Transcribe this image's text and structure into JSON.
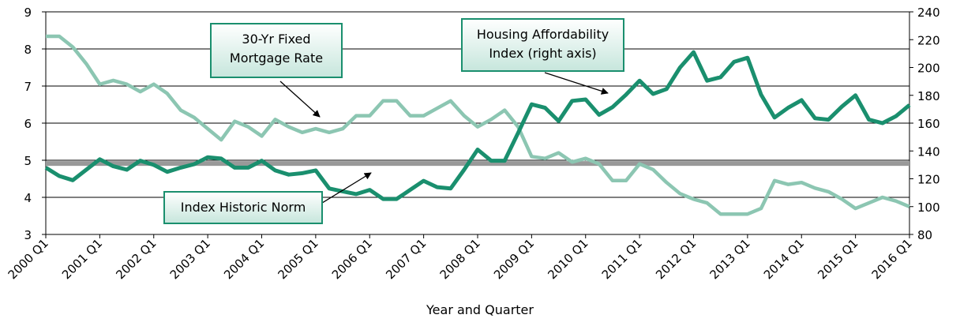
{
  "chart_data": {
    "type": "line",
    "x_label": "Year and Quarter",
    "categories": [
      "2000 Q1",
      null,
      null,
      null,
      "2001 Q1",
      null,
      null,
      null,
      "2002 Q1",
      null,
      null,
      null,
      "2003 Q1",
      null,
      null,
      null,
      "2004 Q1",
      null,
      null,
      null,
      "2005 Q1",
      null,
      null,
      null,
      "2006 Q1",
      null,
      null,
      null,
      "2007 Q1",
      null,
      null,
      null,
      "2008 Q1",
      null,
      null,
      null,
      "2009 Q1",
      null,
      null,
      null,
      "2010 Q1",
      null,
      null,
      null,
      "2011 Q1",
      null,
      null,
      null,
      "2012 Q1",
      null,
      null,
      null,
      "2013 Q1",
      null,
      null,
      null,
      "2014 Q1",
      null,
      null,
      null,
      "2015 Q1",
      null,
      null,
      null,
      "2016 Q1"
    ],
    "ylim": [
      3,
      9
    ],
    "yticks": [
      3,
      4,
      5,
      6,
      7,
      8,
      9
    ],
    "y2lim": [
      80,
      240
    ],
    "y2ticks": [
      80,
      100,
      120,
      140,
      160,
      180,
      200,
      220,
      240
    ],
    "grid": true,
    "series": [
      {
        "label": [
          "30-Yr Fixed",
          "Mortgage Rate"
        ],
        "color": "#8cc6b2",
        "axis": "y",
        "values": [
          8.34,
          8.34,
          8.05,
          7.6,
          7.05,
          7.15,
          7.05,
          6.85,
          7.05,
          6.8,
          6.35,
          6.15,
          5.85,
          5.55,
          6.05,
          5.9,
          5.65,
          6.1,
          5.9,
          5.75,
          5.85,
          5.75,
          5.85,
          6.2,
          6.2,
          6.6,
          6.6,
          6.2,
          6.2,
          6.4,
          6.6,
          6.2,
          5.9,
          6.1,
          6.35,
          5.9,
          5.1,
          5.05,
          5.2,
          4.95,
          5.05,
          4.9,
          4.45,
          4.45,
          4.9,
          4.75,
          4.4,
          4.1,
          3.95,
          3.85,
          3.55,
          3.55,
          3.55,
          3.7,
          4.45,
          4.35,
          4.4,
          4.25,
          4.15,
          3.95,
          3.7,
          3.85,
          4.0,
          3.9,
          3.75
        ]
      },
      {
        "label": [
          "Housing Affordability",
          "Index (right axis)"
        ],
        "color": "#1a8f6e",
        "axis": "y2",
        "values": [
          128,
          122,
          119,
          126.5,
          134,
          129,
          126.5,
          133,
          130,
          125,
          128,
          130.5,
          135.5,
          134.5,
          128,
          128,
          133,
          126,
          123,
          124,
          126,
          113,
          111,
          109,
          112,
          105.5,
          105.5,
          112,
          118.5,
          114,
          113,
          126.5,
          141,
          133,
          133,
          153,
          173.5,
          171,
          161.5,
          176,
          177,
          166,
          171.5,
          180.5,
          190.5,
          181,
          184.5,
          200,
          211,
          190.5,
          193,
          204,
          207,
          180.5,
          164,
          171,
          176.5,
          163.5,
          162.5,
          172,
          180,
          162.5,
          160,
          165,
          173
        ]
      }
    ],
    "reference_line": {
      "label": [
        "Index Historic Norm"
      ],
      "value": 131,
      "axis": "y2",
      "color": "#999999"
    }
  }
}
